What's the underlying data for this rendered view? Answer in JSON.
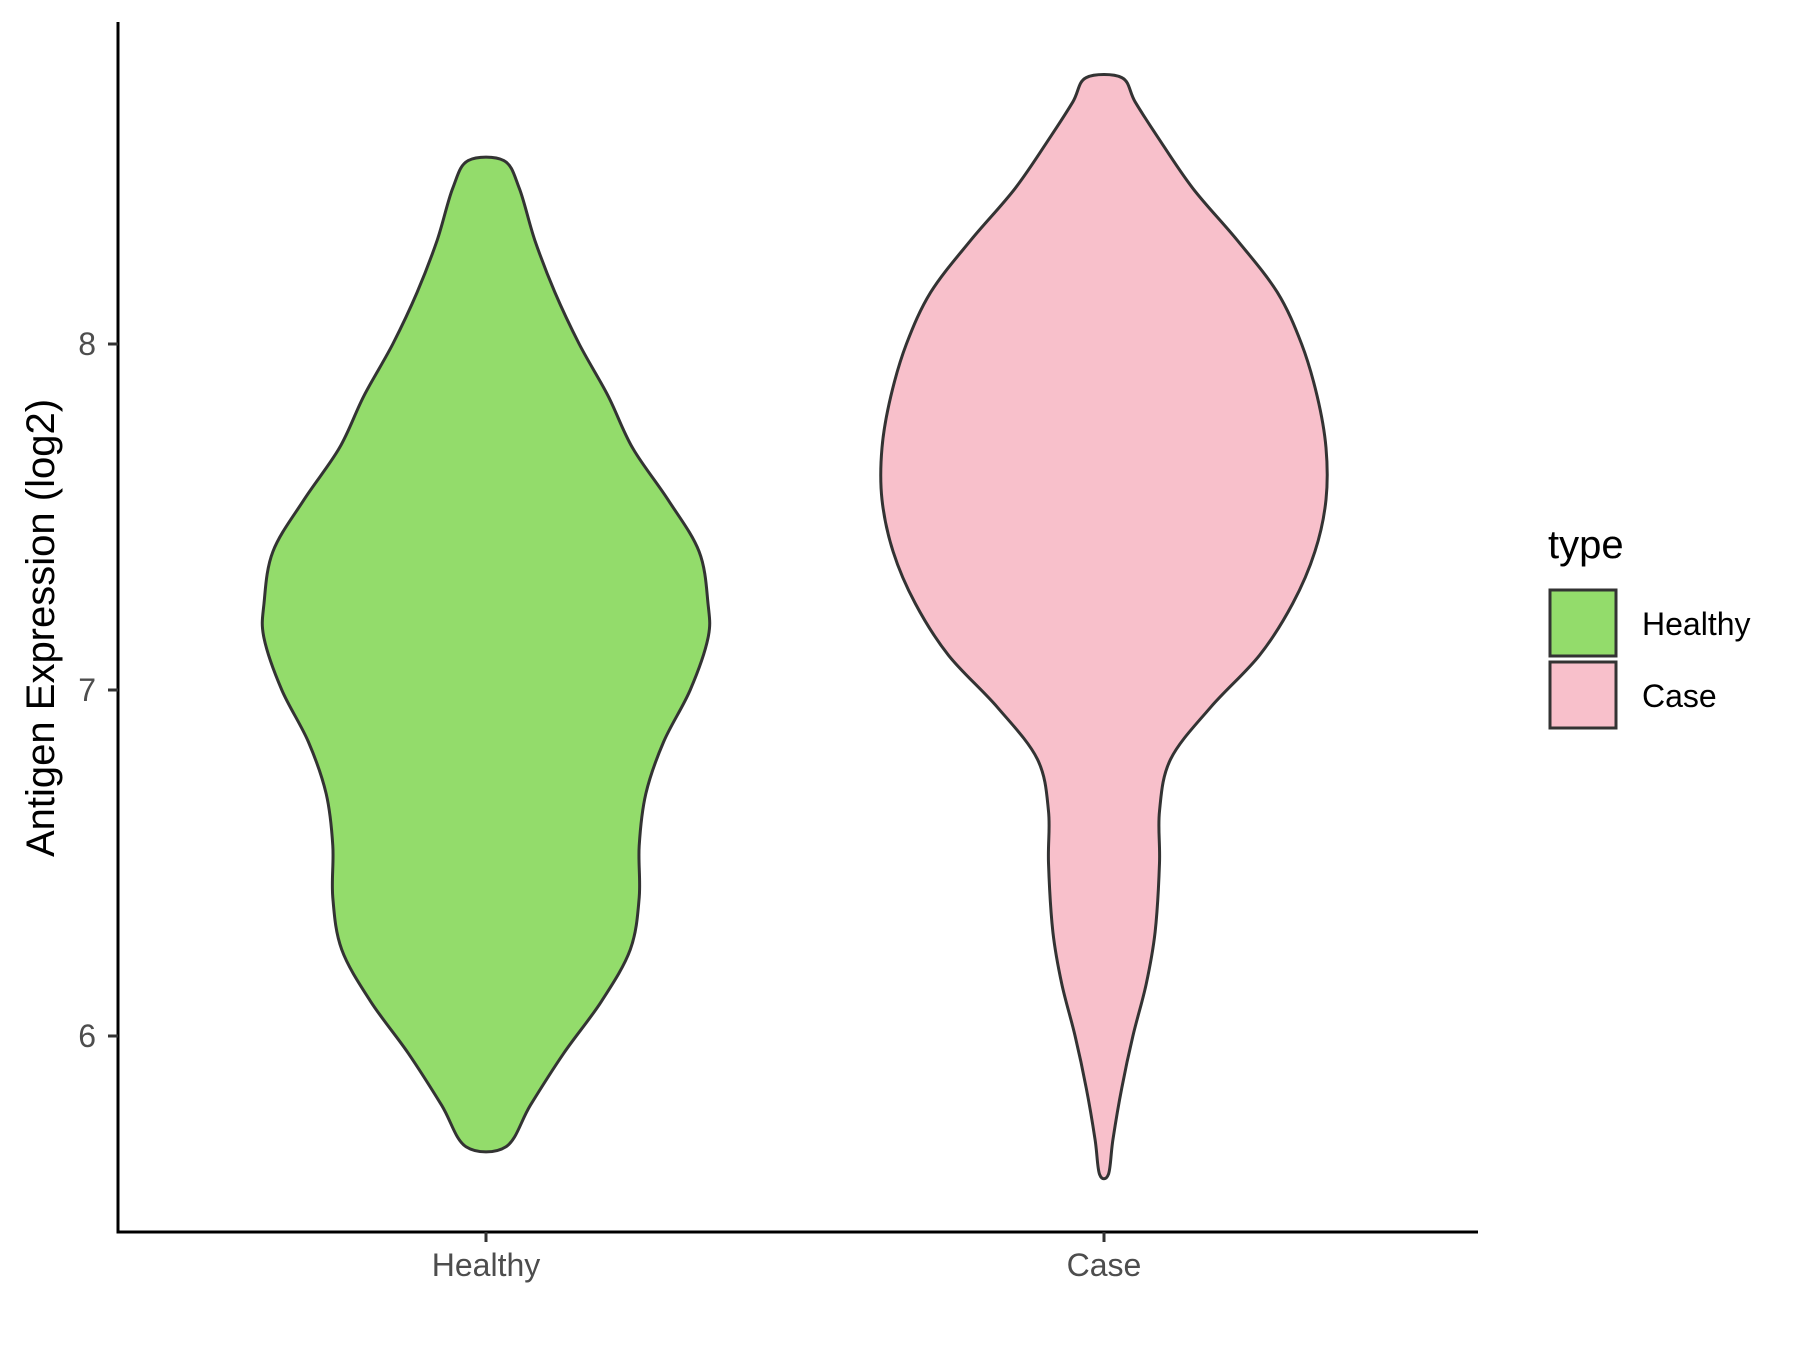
{
  "chart_data": {
    "type": "violin",
    "ylabel": "Antigen Expression (log2)",
    "xlabel": "",
    "categories": [
      "Healthy",
      "Case"
    ],
    "yticks": [
      6,
      7,
      8
    ],
    "ylim": [
      5.45,
      8.93
    ],
    "series": [
      {
        "name": "Healthy",
        "color": "#93dc6b",
        "y_min": 5.68,
        "y_max": 8.53,
        "density": [
          [
            5.68,
            0.09
          ],
          [
            5.8,
            0.2
          ],
          [
            5.95,
            0.35
          ],
          [
            6.1,
            0.52
          ],
          [
            6.25,
            0.65
          ],
          [
            6.4,
            0.69
          ],
          [
            6.55,
            0.69
          ],
          [
            6.7,
            0.72
          ],
          [
            6.85,
            0.8
          ],
          [
            7.0,
            0.92
          ],
          [
            7.15,
            1.0
          ],
          [
            7.25,
            1.0
          ],
          [
            7.4,
            0.96
          ],
          [
            7.55,
            0.82
          ],
          [
            7.7,
            0.66
          ],
          [
            7.85,
            0.55
          ],
          [
            8.0,
            0.42
          ],
          [
            8.15,
            0.31
          ],
          [
            8.3,
            0.22
          ],
          [
            8.45,
            0.15
          ],
          [
            8.53,
            0.08
          ]
        ]
      },
      {
        "name": "Case",
        "color": "#f8c0cb",
        "y_min": 5.6,
        "y_max": 8.77,
        "density": [
          [
            5.6,
            0.02
          ],
          [
            5.7,
            0.04
          ],
          [
            5.85,
            0.08
          ],
          [
            6.0,
            0.13
          ],
          [
            6.15,
            0.19
          ],
          [
            6.3,
            0.23
          ],
          [
            6.5,
            0.25
          ],
          [
            6.65,
            0.25
          ],
          [
            6.8,
            0.3
          ],
          [
            6.95,
            0.48
          ],
          [
            7.1,
            0.7
          ],
          [
            7.25,
            0.85
          ],
          [
            7.4,
            0.95
          ],
          [
            7.55,
            1.0
          ],
          [
            7.7,
            1.0
          ],
          [
            7.85,
            0.96
          ],
          [
            8.0,
            0.89
          ],
          [
            8.15,
            0.78
          ],
          [
            8.3,
            0.6
          ],
          [
            8.45,
            0.4
          ],
          [
            8.6,
            0.24
          ],
          [
            8.7,
            0.14
          ],
          [
            8.77,
            0.08
          ]
        ]
      }
    ],
    "legend": {
      "title": "type",
      "position": "right",
      "entries": [
        {
          "label": "Healthy",
          "color": "#93dc6b"
        },
        {
          "label": "Case",
          "color": "#f8c0cb"
        }
      ]
    }
  }
}
